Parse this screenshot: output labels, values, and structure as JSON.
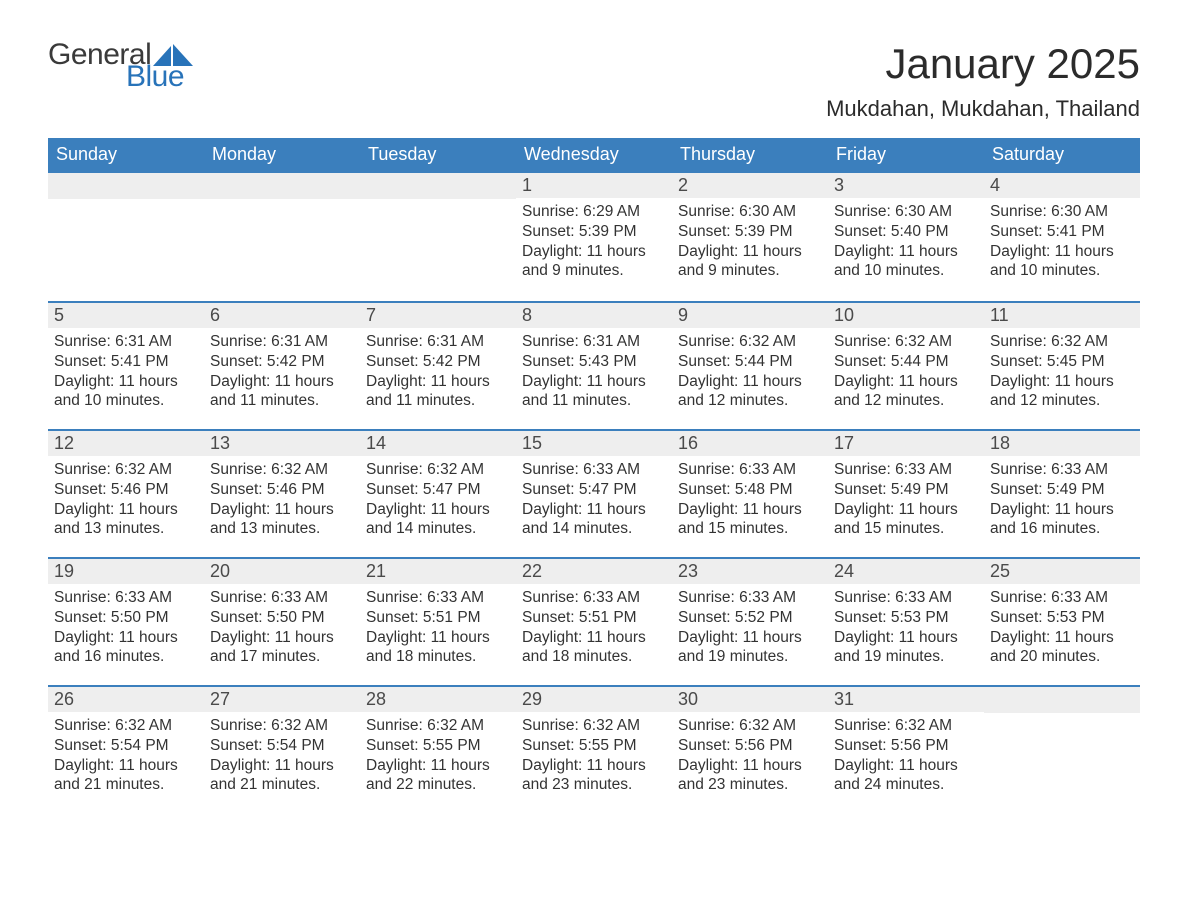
{
  "brand": {
    "word1": "General",
    "word2": "Blue",
    "word1_color": "#3a3a3a",
    "word2_color": "#2873b9",
    "sail_color": "#2873b9"
  },
  "title": "January 2025",
  "location": "Mukdahan, Mukdahan, Thailand",
  "colors": {
    "header_bg": "#3b7fbd",
    "header_fg": "#ffffff",
    "daynum_bg": "#eeeeee",
    "daynum_fg": "#4a4a4a",
    "body_fg": "#333333",
    "row_border": "#3b7fbd",
    "page_bg": "#ffffff"
  },
  "typography": {
    "title_fontsize": 42,
    "location_fontsize": 22,
    "head_fontsize": 18,
    "daynum_fontsize": 18,
    "body_fontsize": 15.5
  },
  "weekdays": [
    "Sunday",
    "Monday",
    "Tuesday",
    "Wednesday",
    "Thursday",
    "Friday",
    "Saturday"
  ],
  "weeks": [
    [
      null,
      null,
      null,
      {
        "d": "1",
        "sunrise": "6:29 AM",
        "sunset": "5:39 PM",
        "daylight": "11 hours and 9 minutes."
      },
      {
        "d": "2",
        "sunrise": "6:30 AM",
        "sunset": "5:39 PM",
        "daylight": "11 hours and 9 minutes."
      },
      {
        "d": "3",
        "sunrise": "6:30 AM",
        "sunset": "5:40 PM",
        "daylight": "11 hours and 10 minutes."
      },
      {
        "d": "4",
        "sunrise": "6:30 AM",
        "sunset": "5:41 PM",
        "daylight": "11 hours and 10 minutes."
      }
    ],
    [
      {
        "d": "5",
        "sunrise": "6:31 AM",
        "sunset": "5:41 PM",
        "daylight": "11 hours and 10 minutes."
      },
      {
        "d": "6",
        "sunrise": "6:31 AM",
        "sunset": "5:42 PM",
        "daylight": "11 hours and 11 minutes."
      },
      {
        "d": "7",
        "sunrise": "6:31 AM",
        "sunset": "5:42 PM",
        "daylight": "11 hours and 11 minutes."
      },
      {
        "d": "8",
        "sunrise": "6:31 AM",
        "sunset": "5:43 PM",
        "daylight": "11 hours and 11 minutes."
      },
      {
        "d": "9",
        "sunrise": "6:32 AM",
        "sunset": "5:44 PM",
        "daylight": "11 hours and 12 minutes."
      },
      {
        "d": "10",
        "sunrise": "6:32 AM",
        "sunset": "5:44 PM",
        "daylight": "11 hours and 12 minutes."
      },
      {
        "d": "11",
        "sunrise": "6:32 AM",
        "sunset": "5:45 PM",
        "daylight": "11 hours and 12 minutes."
      }
    ],
    [
      {
        "d": "12",
        "sunrise": "6:32 AM",
        "sunset": "5:46 PM",
        "daylight": "11 hours and 13 minutes."
      },
      {
        "d": "13",
        "sunrise": "6:32 AM",
        "sunset": "5:46 PM",
        "daylight": "11 hours and 13 minutes."
      },
      {
        "d": "14",
        "sunrise": "6:32 AM",
        "sunset": "5:47 PM",
        "daylight": "11 hours and 14 minutes."
      },
      {
        "d": "15",
        "sunrise": "6:33 AM",
        "sunset": "5:47 PM",
        "daylight": "11 hours and 14 minutes."
      },
      {
        "d": "16",
        "sunrise": "6:33 AM",
        "sunset": "5:48 PM",
        "daylight": "11 hours and 15 minutes."
      },
      {
        "d": "17",
        "sunrise": "6:33 AM",
        "sunset": "5:49 PM",
        "daylight": "11 hours and 15 minutes."
      },
      {
        "d": "18",
        "sunrise": "6:33 AM",
        "sunset": "5:49 PM",
        "daylight": "11 hours and 16 minutes."
      }
    ],
    [
      {
        "d": "19",
        "sunrise": "6:33 AM",
        "sunset": "5:50 PM",
        "daylight": "11 hours and 16 minutes."
      },
      {
        "d": "20",
        "sunrise": "6:33 AM",
        "sunset": "5:50 PM",
        "daylight": "11 hours and 17 minutes."
      },
      {
        "d": "21",
        "sunrise": "6:33 AM",
        "sunset": "5:51 PM",
        "daylight": "11 hours and 18 minutes."
      },
      {
        "d": "22",
        "sunrise": "6:33 AM",
        "sunset": "5:51 PM",
        "daylight": "11 hours and 18 minutes."
      },
      {
        "d": "23",
        "sunrise": "6:33 AM",
        "sunset": "5:52 PM",
        "daylight": "11 hours and 19 minutes."
      },
      {
        "d": "24",
        "sunrise": "6:33 AM",
        "sunset": "5:53 PM",
        "daylight": "11 hours and 19 minutes."
      },
      {
        "d": "25",
        "sunrise": "6:33 AM",
        "sunset": "5:53 PM",
        "daylight": "11 hours and 20 minutes."
      }
    ],
    [
      {
        "d": "26",
        "sunrise": "6:32 AM",
        "sunset": "5:54 PM",
        "daylight": "11 hours and 21 minutes."
      },
      {
        "d": "27",
        "sunrise": "6:32 AM",
        "sunset": "5:54 PM",
        "daylight": "11 hours and 21 minutes."
      },
      {
        "d": "28",
        "sunrise": "6:32 AM",
        "sunset": "5:55 PM",
        "daylight": "11 hours and 22 minutes."
      },
      {
        "d": "29",
        "sunrise": "6:32 AM",
        "sunset": "5:55 PM",
        "daylight": "11 hours and 23 minutes."
      },
      {
        "d": "30",
        "sunrise": "6:32 AM",
        "sunset": "5:56 PM",
        "daylight": "11 hours and 23 minutes."
      },
      {
        "d": "31",
        "sunrise": "6:32 AM",
        "sunset": "5:56 PM",
        "daylight": "11 hours and 24 minutes."
      },
      null
    ]
  ],
  "labels": {
    "sunrise": "Sunrise: ",
    "sunset": "Sunset: ",
    "daylight": "Daylight: "
  }
}
